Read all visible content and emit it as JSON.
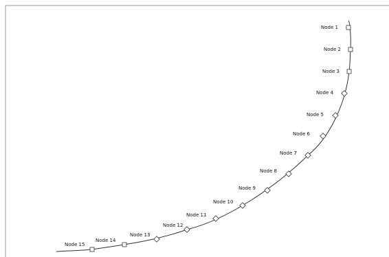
{
  "diagram": {
    "nodes": [
      {
        "label": "Node  1"
      },
      {
        "label": "Node  2"
      },
      {
        "label": "Node  3"
      },
      {
        "label": "Node  4"
      },
      {
        "label": "Node  5"
      },
      {
        "label": "Node  6"
      },
      {
        "label": "Node  7"
      },
      {
        "label": "Node  8"
      },
      {
        "label": "Node  9"
      },
      {
        "label": "Node  10"
      },
      {
        "label": "Node  11"
      },
      {
        "label": "Node  12"
      },
      {
        "label": "Node  13"
      },
      {
        "label": "Node  14"
      },
      {
        "label": "Node  15"
      }
    ],
    "colors": {
      "frame": "#9a9a9a",
      "curve": "#333333",
      "marker": "#333333"
    }
  }
}
